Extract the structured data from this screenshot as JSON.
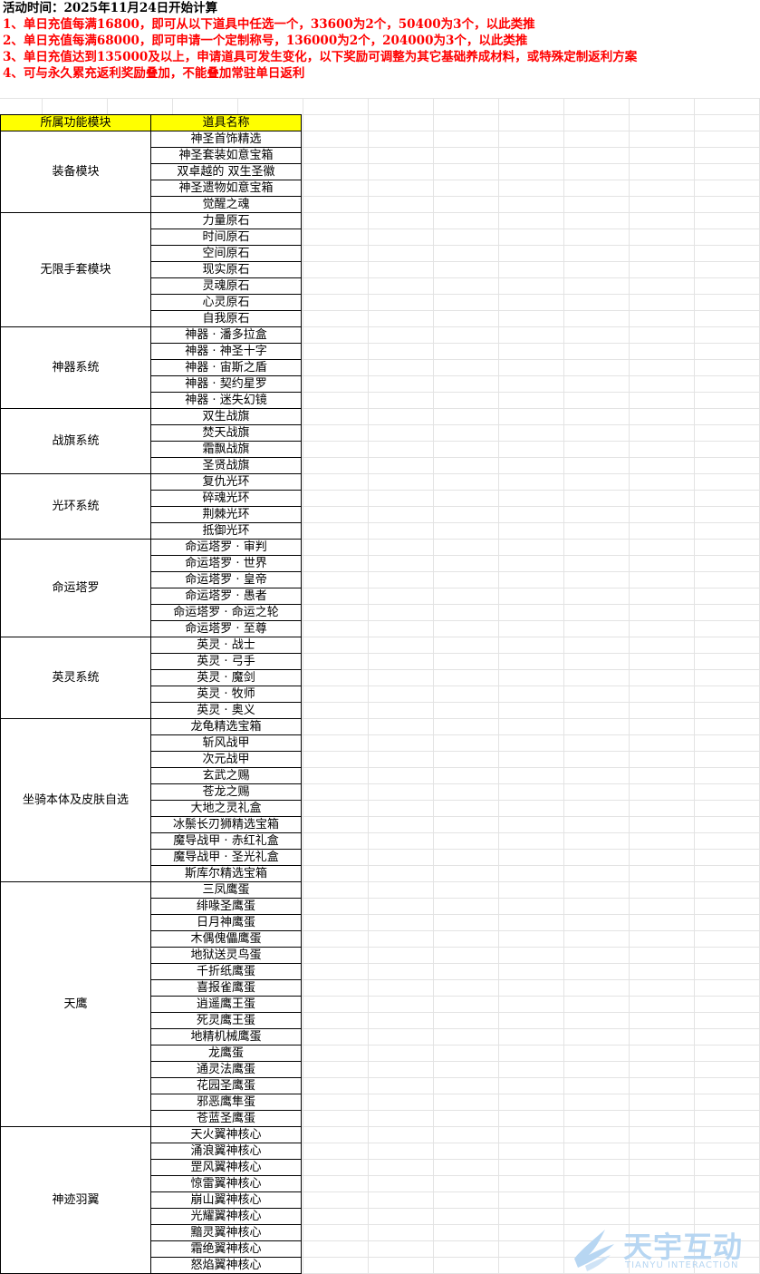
{
  "header": {
    "title": "活动时间：2025年11月24日开始计算",
    "rules": [
      "1、单日充值每满16800，即可从以下道具中任选一个，33600为2个，50400为3个，以此类推",
      "2、单日充值每满68000，即可申请一个定制称号，136000为2个，204000为3个，以此类推",
      "3、单日充值达到135000及以上，申请道具可发生变化，以下奖励可调整为其它基础养成材料，或特殊定制返利方案",
      "4、可与永久累充返利奖励叠加，不能叠加常驻单日返利"
    ]
  },
  "table": {
    "headers": [
      "所属功能模块",
      "道具名称"
    ],
    "colors": {
      "header_bg": "#ffff00",
      "rule_text": "#ff0000"
    },
    "groups": [
      {
        "module": "装备模块",
        "items": [
          "神圣首饰精选",
          "神圣套装如意宝箱",
          "双卓越的 双生圣徽",
          "神圣遗物如意宝箱",
          "觉醒之魂"
        ]
      },
      {
        "module": "无限手套模块",
        "items": [
          "力量原石",
          "时间原石",
          "空间原石",
          "现实原石",
          "灵魂原石",
          "心灵原石",
          "自我原石"
        ]
      },
      {
        "module": "神器系统",
        "items": [
          "神器 · 潘多拉盒",
          "神器 · 神圣十字",
          "神器 · 宙斯之盾",
          "神器 · 契约星罗",
          "神器 · 迷失幻镜"
        ]
      },
      {
        "module": "战旗系统",
        "items": [
          "双生战旗",
          "焚天战旗",
          "霜飘战旗",
          "圣贤战旗"
        ]
      },
      {
        "module": "光环系统",
        "items": [
          "复仇光环",
          "碎魂光环",
          "荆棘光环",
          "抵御光环"
        ]
      },
      {
        "module": "命运塔罗",
        "items": [
          "命运塔罗 · 审判",
          "命运塔罗 · 世界",
          "命运塔罗 · 皇帝",
          "命运塔罗 · 愚者",
          "命运塔罗 · 命运之轮",
          "命运塔罗 · 至尊"
        ]
      },
      {
        "module": "英灵系统",
        "items": [
          "英灵 · 战士",
          "英灵 · 弓手",
          "英灵 · 魔剑",
          "英灵 · 牧师",
          "英灵 · 奥义"
        ]
      },
      {
        "module": "坐骑本体及皮肤自选",
        "items": [
          "龙龟精选宝箱",
          "斩风战甲",
          "次元战甲",
          "玄武之赐",
          "苍龙之赐",
          "大地之灵礼盒",
          "冰鬃长刃狮精选宝箱",
          "魔导战甲 · 赤红礼盒",
          "魔导战甲 · 圣光礼盒",
          "斯库尔精选宝箱"
        ]
      },
      {
        "module": "天鹰",
        "items": [
          "三凤鹰蛋",
          "绯喙圣鹰蛋",
          "日月神鹰蛋",
          "木偶傀儡鹰蛋",
          "地狱送灵鸟蛋",
          "千折纸鹰蛋",
          "喜报雀鹰蛋",
          "逍遥鹰王蛋",
          "死灵鹰王蛋",
          "地精机械鹰蛋",
          "龙鹰蛋",
          "通灵法鹰蛋",
          "花园圣鹰蛋",
          "邪恶鹰隼蛋",
          "苍蓝圣鹰蛋"
        ]
      },
      {
        "module": "神迹羽翼",
        "items": [
          "天火翼神核心",
          "涌浪翼神核心",
          "罡风翼神核心",
          "惊雷翼神核心",
          "崩山翼神核心",
          "光耀翼神核心",
          "黯灵翼神核心",
          "霜绝翼神核心",
          "怒焰翼神核心"
        ]
      }
    ]
  },
  "logo": {
    "name": "天宇互动",
    "subtitle": "TIANYU INTERACTION",
    "icon": "wing-logo-icon",
    "color": "#b7d6f2"
  }
}
